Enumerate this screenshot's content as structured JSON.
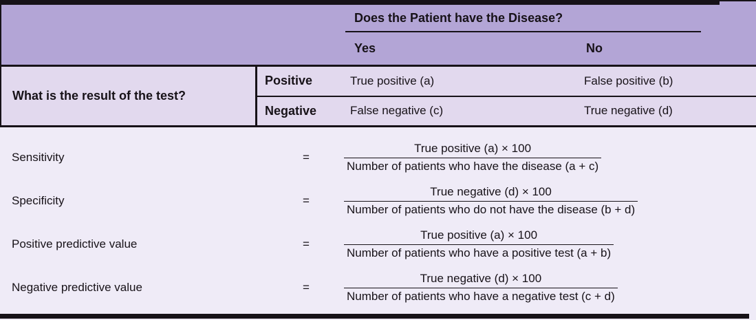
{
  "contingency_table": {
    "column_question": "Does the Patient have the Disease?",
    "column_headers": [
      "Yes",
      "No"
    ],
    "row_question": "What is the result of the test?",
    "rows": [
      {
        "label": "Positive",
        "yes": "True positive (a)",
        "no": "False positive (b)"
      },
      {
        "label": "Negative",
        "yes": "False negative (c)",
        "no": "True negative (d)"
      }
    ]
  },
  "formulas": [
    {
      "label": "Sensitivity",
      "equals": "=",
      "numerator": "True positive (a) × 100",
      "denominator": "Number of patients who have the disease (a + c)"
    },
    {
      "label": "Specificity",
      "equals": "=",
      "numerator": "True negative (d) × 100",
      "denominator": "Number of patients who do not have the disease (b + d)"
    },
    {
      "label": "Positive predictive value",
      "equals": "=",
      "numerator": "True positive (a) × 100",
      "denominator": "Number of patients who have a positive test (a + b)"
    },
    {
      "label": "Negative predictive value",
      "equals": "=",
      "numerator": "True negative (d) × 100",
      "denominator": "Number of patients who have a negative test (c + d)"
    }
  ],
  "colors": {
    "header_bg": "#b3a5d6",
    "rows_bg": "#e2d9ee",
    "formulas_bg": "#efebf7",
    "line": "#171218"
  }
}
